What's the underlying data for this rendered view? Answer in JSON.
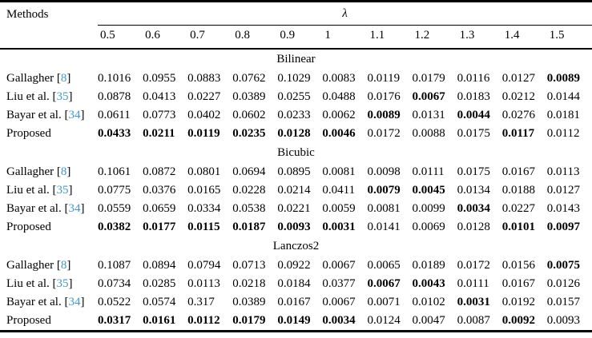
{
  "theme": {
    "citation_color": "#3D99D5",
    "text_color": "#000000",
    "background": "#ffffff"
  },
  "table": {
    "methods_header": "Methods",
    "lambda_header": "λ",
    "lambda_values": [
      "0.5",
      "0.6",
      "0.7",
      "0.8",
      "0.9",
      "1",
      "1.1",
      "1.2",
      "1.3",
      "1.4",
      "1.5"
    ],
    "sections": [
      {
        "title": "Bilinear",
        "rows": [
          {
            "method": "Gallagher",
            "ref": "8",
            "values": [
              "0.1016",
              "0.0955",
              "0.0883",
              "0.0762",
              "0.1029",
              "0.0083",
              "0.0119",
              "0.0179",
              "0.0116",
              "0.0127",
              "0.0089"
            ],
            "bold": [
              10
            ]
          },
          {
            "method": "Liu et al.",
            "ref": "35",
            "values": [
              "0.0878",
              "0.0413",
              "0.0227",
              "0.0389",
              "0.0255",
              "0.0488",
              "0.0176",
              "0.0067",
              "0.0183",
              "0.0212",
              "0.0144"
            ],
            "bold": [
              7
            ]
          },
          {
            "method": "Bayar et al.",
            "ref": "34",
            "values": [
              "0.0611",
              "0.0773",
              "0.0402",
              "0.0602",
              "0.0233",
              "0.0062",
              "0.0089",
              "0.0131",
              "0.0044",
              "0.0276",
              "0.0181"
            ],
            "bold": [
              6,
              8
            ]
          },
          {
            "method": "Proposed",
            "ref": null,
            "values": [
              "0.0433",
              "0.0211",
              "0.0119",
              "0.0235",
              "0.0128",
              "0.0046",
              "0.0172",
              "0.0088",
              "0.0175",
              "0.0117",
              "0.0112"
            ],
            "bold": [
              0,
              1,
              2,
              3,
              4,
              5,
              9
            ]
          }
        ]
      },
      {
        "title": "Bicubic",
        "rows": [
          {
            "method": "Gallagher",
            "ref": "8",
            "values": [
              "0.1061",
              "0.0872",
              "0.0801",
              "0.0694",
              "0.0895",
              "0.0081",
              "0.0098",
              "0.0111",
              "0.0175",
              "0.0167",
              "0.0113"
            ],
            "bold": []
          },
          {
            "method": "Liu et al.",
            "ref": "35",
            "values": [
              "0.0775",
              "0.0376",
              "0.0165",
              "0.0228",
              "0.0214",
              "0.0411",
              "0.0079",
              "0.0045",
              "0.0134",
              "0.0188",
              "0.0127"
            ],
            "bold": [
              6,
              7
            ]
          },
          {
            "method": "Bayar et al.",
            "ref": "34",
            "values": [
              "0.0559",
              "0.0659",
              "0.0334",
              "0.0538",
              "0.0221",
              "0.0059",
              "0.0081",
              "0.0099",
              "0.0034",
              "0.0227",
              "0.0143"
            ],
            "bold": [
              8
            ]
          },
          {
            "method": "Proposed",
            "ref": null,
            "values": [
              "0.0382",
              "0.0177",
              "0.0115",
              "0.0187",
              "0.0093",
              "0.0031",
              "0.0141",
              "0.0069",
              "0.0128",
              "0.0101",
              "0.0097"
            ],
            "bold": [
              0,
              1,
              2,
              3,
              4,
              5,
              9,
              10
            ]
          }
        ]
      },
      {
        "title": "Lanczos2",
        "rows": [
          {
            "method": "Gallagher",
            "ref": "8",
            "values": [
              "0.1087",
              "0.0894",
              "0.0794",
              "0.0713",
              "0.0922",
              "0.0067",
              "0.0065",
              "0.0189",
              "0.0172",
              "0.0156",
              "0.0075"
            ],
            "bold": [
              10
            ]
          },
          {
            "method": "Liu et al.",
            "ref": "35",
            "values": [
              "0.0734",
              "0.0285",
              "0.0113",
              "0.0218",
              "0.0184",
              "0.0377",
              "0.0067",
              "0.0043",
              "0.0111",
              "0.0167",
              "0.0126"
            ],
            "bold": [
              6,
              7
            ]
          },
          {
            "method": "Bayar et al.",
            "ref": "34",
            "values": [
              "0.0522",
              "0.0574",
              "0.317",
              "0.0389",
              "0.0167",
              "0.0067",
              "0.0071",
              "0.0102",
              "0.0031",
              "0.0192",
              "0.0157"
            ],
            "bold": [
              8
            ]
          },
          {
            "method": "Proposed",
            "ref": null,
            "values": [
              "0.0317",
              "0.0161",
              "0.0112",
              "0.0179",
              "0.0149",
              "0.0034",
              "0.0124",
              "0.0047",
              "0.0087",
              "0.0092",
              "0.0093"
            ],
            "bold": [
              0,
              1,
              2,
              3,
              4,
              5,
              9
            ]
          }
        ]
      }
    ]
  }
}
